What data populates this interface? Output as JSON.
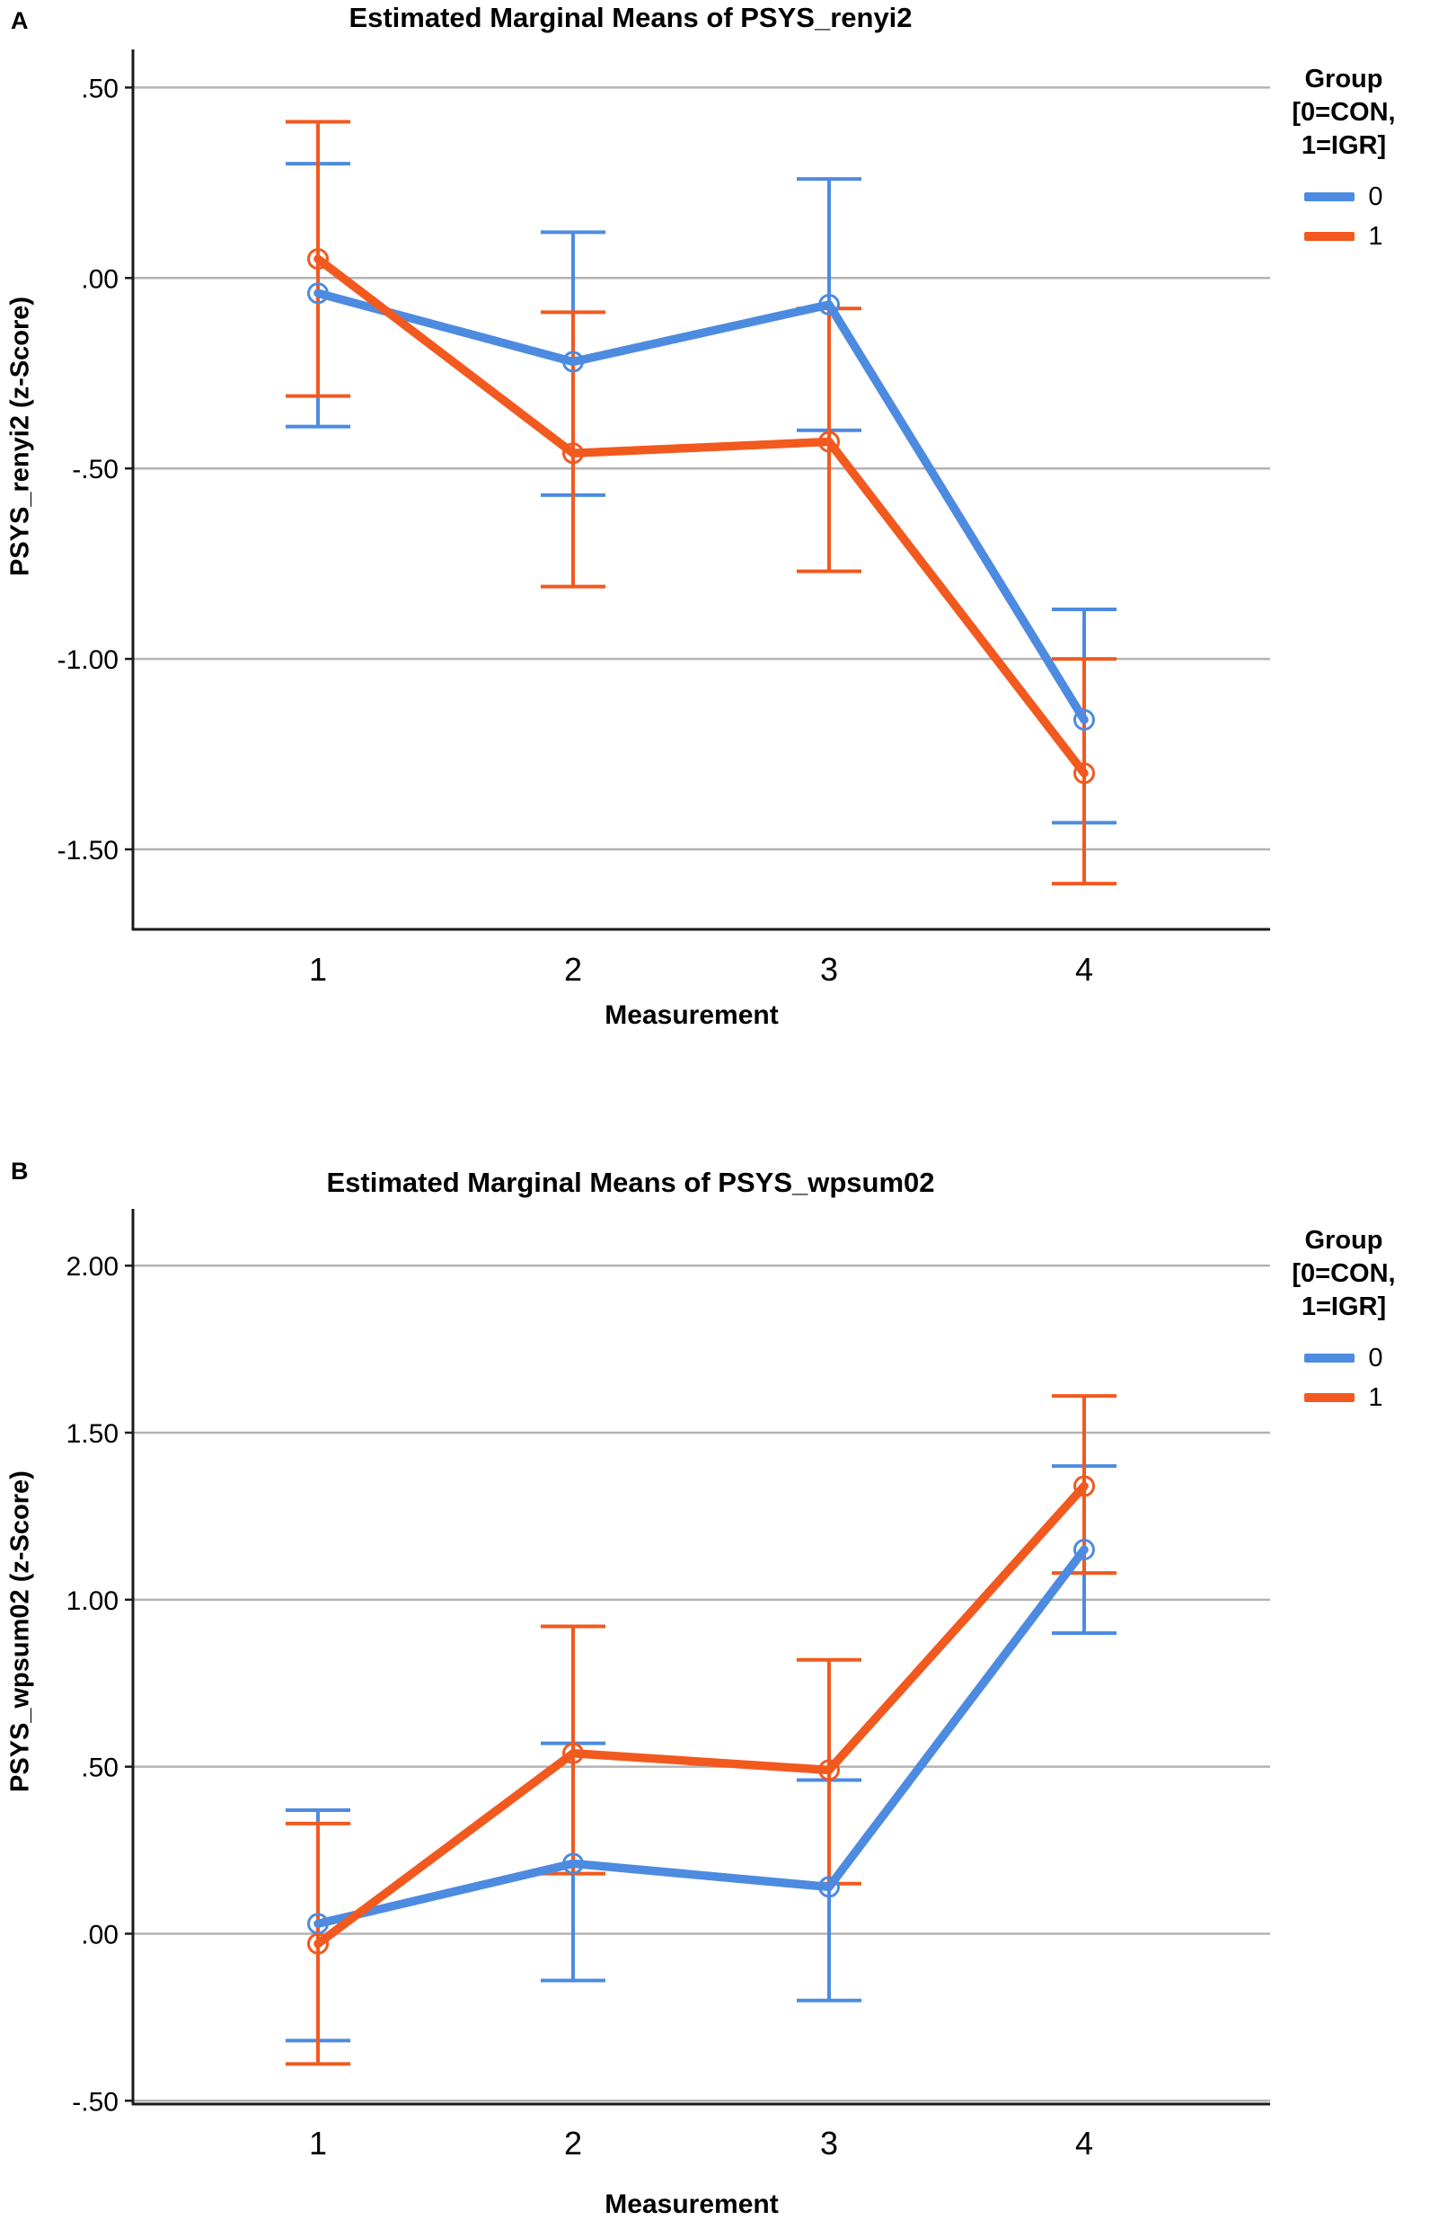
{
  "page": {
    "background": "#ffffff"
  },
  "colors": {
    "grid": "#b3b3b3",
    "axis": "#1a1a1a",
    "text": "#000000",
    "group0": "#4D8BE0",
    "group1": "#F2591F"
  },
  "chart_data": [
    {
      "type": "line",
      "panel_label": "A",
      "title": "Estimated Marginal Means of PSYS_renyi2",
      "xlabel": "Measurement",
      "ylabel": "PSYS_renyi2 (z-Score)",
      "x_categories": [
        "1",
        "2",
        "3",
        "4"
      ],
      "yticks": [
        0.5,
        0.0,
        -0.5,
        -1.0,
        -1.5
      ],
      "ytick_labels": [
        ".50",
        ".00",
        "-.50",
        "-1.00",
        "-1.50"
      ],
      "ylim": [
        -1.71,
        0.6
      ],
      "grid": true,
      "error_bars": "95% CI",
      "legend": {
        "position": "top-right",
        "title_lines": [
          "Group",
          "[0=CON,",
          "1=IGR]"
        ],
        "entries": [
          {
            "label": "0",
            "color": "#4D8BE0"
          },
          {
            "label": "1",
            "color": "#F2591F"
          }
        ]
      },
      "series": [
        {
          "name": "0",
          "color": "#4D8BE0",
          "means": [
            -0.04,
            -0.22,
            -0.07,
            -1.16
          ],
          "ci_upper": [
            0.3,
            0.12,
            0.26,
            -0.87
          ],
          "ci_lower": [
            -0.39,
            -0.57,
            -0.4,
            -1.43
          ]
        },
        {
          "name": "1",
          "color": "#F2591F",
          "means": [
            0.05,
            -0.46,
            -0.43,
            -1.3
          ],
          "ci_upper": [
            0.41,
            -0.09,
            -0.08,
            -1.0
          ],
          "ci_lower": [
            -0.31,
            -0.81,
            -0.77,
            -1.59
          ]
        }
      ]
    },
    {
      "type": "line",
      "panel_label": "B",
      "title": "Estimated Marginal Means of PSYS_wpsum02",
      "xlabel": "Measurement",
      "ylabel": "PSYS_wpsum02 (z-Score)",
      "x_categories": [
        "1",
        "2",
        "3",
        "4"
      ],
      "yticks": [
        2.0,
        1.5,
        1.0,
        0.5,
        0.0,
        -0.5
      ],
      "ytick_labels": [
        "2.00",
        "1.50",
        "1.00",
        ".50",
        ".00",
        "-.50"
      ],
      "ylim": [
        -0.51,
        2.17
      ],
      "grid": true,
      "error_bars": "95% CI",
      "legend": {
        "position": "top-right",
        "title_lines": [
          "Group",
          "[0=CON,",
          "1=IGR]"
        ],
        "entries": [
          {
            "label": "0",
            "color": "#4D8BE0"
          },
          {
            "label": "1",
            "color": "#F2591F"
          }
        ]
      },
      "series": [
        {
          "name": "0",
          "color": "#4D8BE0",
          "means": [
            0.03,
            0.21,
            0.14,
            1.15
          ],
          "ci_upper": [
            0.37,
            0.57,
            0.46,
            1.4
          ],
          "ci_lower": [
            -0.32,
            -0.14,
            -0.2,
            0.9
          ]
        },
        {
          "name": "1",
          "color": "#F2591F",
          "means": [
            -0.03,
            0.54,
            0.49,
            1.34
          ],
          "ci_upper": [
            0.33,
            0.92,
            0.82,
            1.61
          ],
          "ci_lower": [
            -0.39,
            0.18,
            0.15,
            1.08
          ]
        }
      ]
    }
  ]
}
